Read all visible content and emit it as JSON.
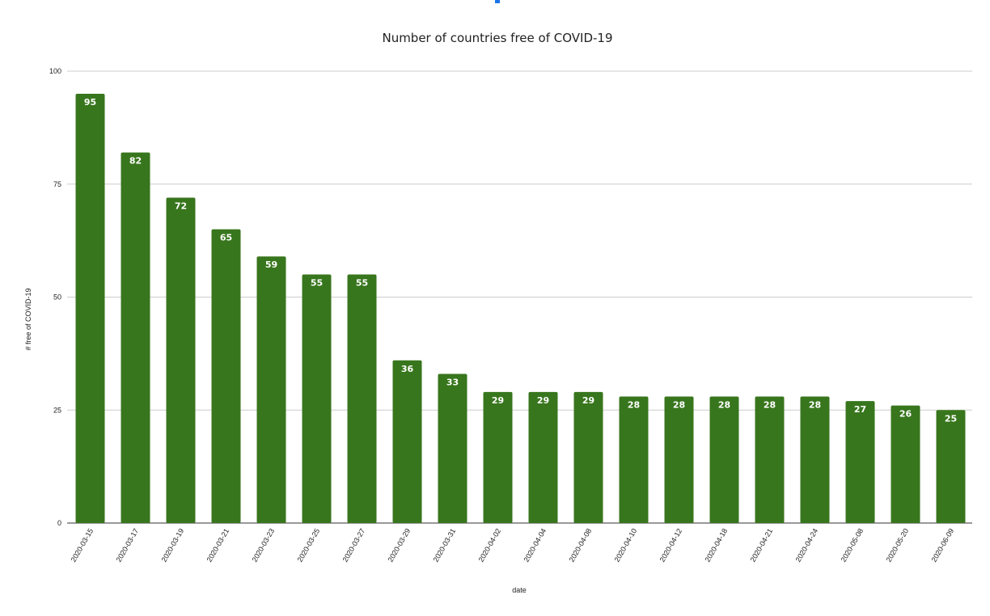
{
  "chart_data": {
    "type": "bar",
    "title": "Number of countries free of COVID-19",
    "xlabel": "date",
    "ylabel": "# free of COVID-19",
    "categories": [
      "2020-03-15",
      "2020-03-17",
      "2020-03-19",
      "2020-03-21",
      "2020-03-23",
      "2020-03-25",
      "2020-03-27",
      "2020-03-29",
      "2020-03-31",
      "2020-04-02",
      "2020-04-04",
      "2020-04-08",
      "2020-04-10",
      "2020-04-12",
      "2020-04-18",
      "2020-04-21",
      "2020-04-24",
      "2020-05-08",
      "2020-05-20",
      "2020-06-09"
    ],
    "values": [
      95,
      82,
      72,
      65,
      59,
      55,
      55,
      36,
      33,
      29,
      29,
      29,
      28,
      28,
      28,
      28,
      28,
      27,
      26,
      25
    ],
    "ylim": [
      0,
      100
    ],
    "yticks": [
      "0",
      "25",
      "50",
      "75",
      "100"
    ],
    "grid": true,
    "data_labels": true,
    "bar_color": "#38761d"
  }
}
